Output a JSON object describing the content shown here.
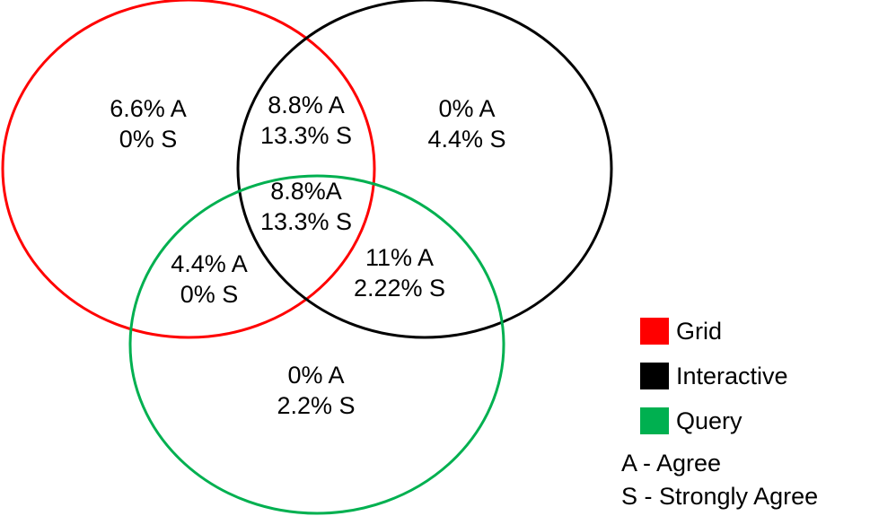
{
  "circles": [
    {
      "name": "Grid",
      "color": "#ff0000"
    },
    {
      "name": "Interactive",
      "color": "#000000"
    },
    {
      "name": "Query",
      "color": "#00b050"
    }
  ],
  "regions": {
    "grid_only": {
      "line1": "6.6% A",
      "line2": "0% S"
    },
    "grid_interactive": {
      "line1": "8.8% A",
      "line2": "13.3% S"
    },
    "interactive_only": {
      "line1": "0% A",
      "line2": "4.4% S"
    },
    "all_three": {
      "line1": "8.8%A",
      "line2": "13.3% S"
    },
    "grid_query": {
      "line1": "4.4% A",
      "line2": "0% S"
    },
    "interactive_query": {
      "line1": "11% A",
      "line2": "2.22% S"
    },
    "query_only": {
      "line1": "0% A",
      "line2": "2.2% S"
    }
  },
  "legend": {
    "items": [
      {
        "label": "Grid",
        "color": "#ff0000"
      },
      {
        "label": "Interactive",
        "color": "#000000"
      },
      {
        "label": "Query",
        "color": "#00b050"
      }
    ],
    "key": {
      "agree": "A - Agree",
      "strongly_agree": "S - Strongly Agree"
    }
  }
}
